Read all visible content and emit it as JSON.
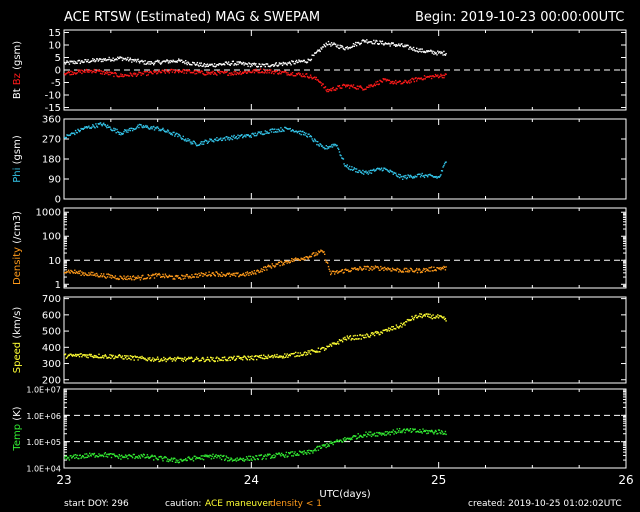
{
  "header": {
    "title": "ACE RTSW (Estimated) MAG & SWEPAM",
    "begin": "Begin: 2019-10-23 00:00:00UTC"
  },
  "footer": {
    "start_doy": "start DOY: 296",
    "caution_label": "caution:",
    "caution_maneuver": "ACE maneuver",
    "caution_density": "density < 1",
    "created": "created: 2019-10-25 01:02:02UTC"
  },
  "colors": {
    "background": "#000000",
    "frame": "#ffffff",
    "bt": "#ffffff",
    "bz": "#ff1a1a",
    "phi": "#33c4e8",
    "density": "#ff9a1a",
    "speed": "#ffff33",
    "temp": "#33ee33"
  },
  "chart_data": [
    {
      "type": "scatter",
      "panel": "mag",
      "ylabel": "Bt  Bz  (gsm)",
      "ylabel_parts": [
        {
          "text": "Bt",
          "color": "#ffffff"
        },
        {
          "text": "Bz",
          "color": "#ff1a1a"
        },
        {
          "text": "(gsm)",
          "color": "#ffffff"
        }
      ],
      "ylim": [
        -16,
        16
      ],
      "yticks": [
        -15,
        -10,
        -5,
        0,
        5,
        10,
        15
      ],
      "ytick_labels": [
        "-15",
        "-10",
        "-5",
        "0",
        "5",
        "10",
        "15"
      ],
      "dashed_lines": [
        0
      ],
      "series": [
        {
          "name": "Bt",
          "color": "#ffffff",
          "x": [
            23.0,
            23.15,
            23.3,
            23.45,
            23.6,
            23.75,
            23.9,
            24.05,
            24.2,
            24.3,
            24.36,
            24.4,
            24.5,
            24.6,
            24.7,
            24.8,
            24.9,
            25.0,
            25.04
          ],
          "y": [
            3,
            4,
            5,
            3,
            4,
            2,
            3,
            2,
            3,
            4,
            8,
            11,
            9,
            12,
            11,
            10,
            8,
            7,
            7
          ]
        },
        {
          "name": "Bz",
          "color": "#ff1a1a",
          "x": [
            23.0,
            23.15,
            23.3,
            23.45,
            23.6,
            23.75,
            23.9,
            24.05,
            24.2,
            24.3,
            24.36,
            24.4,
            24.5,
            24.6,
            24.7,
            24.8,
            24.9,
            25.0,
            25.04
          ],
          "y": [
            -1,
            0,
            -2,
            -1,
            0,
            -1,
            -1,
            0,
            -1,
            -2,
            -4,
            -8,
            -6,
            -7,
            -4,
            -5,
            -3,
            -2,
            -2
          ]
        }
      ]
    },
    {
      "type": "scatter",
      "panel": "phi",
      "ylabel": "Phi  (gsm)",
      "ylabel_parts": [
        {
          "text": "Phi",
          "color": "#33c4e8"
        },
        {
          "text": "(gsm)",
          "color": "#ffffff"
        }
      ],
      "ylim": [
        0,
        360
      ],
      "yticks": [
        0,
        90,
        180,
        270,
        360
      ],
      "ytick_labels": [
        "0",
        "90",
        "180",
        "270",
        "360"
      ],
      "series": [
        {
          "name": "Phi",
          "color": "#33c4e8",
          "x": [
            23.0,
            23.1,
            23.2,
            23.3,
            23.4,
            23.5,
            23.6,
            23.7,
            23.8,
            23.9,
            24.0,
            24.1,
            24.2,
            24.3,
            24.38,
            24.45,
            24.5,
            24.6,
            24.7,
            24.8,
            24.9,
            25.0,
            25.04
          ],
          "y": [
            280,
            320,
            340,
            300,
            330,
            320,
            290,
            250,
            270,
            280,
            290,
            310,
            320,
            290,
            230,
            250,
            150,
            120,
            140,
            100,
            110,
            100,
            180
          ]
        }
      ]
    },
    {
      "type": "scatter",
      "panel": "density",
      "ylabel": "Density  (/cm3)",
      "ylabel_parts": [
        {
          "text": "Density",
          "color": "#ff9a1a"
        },
        {
          "text": "(/cm3)",
          "color": "#ffffff"
        }
      ],
      "yscale": "log",
      "ylim": [
        0.7,
        1500
      ],
      "yticks": [
        1,
        10,
        100,
        1000
      ],
      "ytick_labels": [
        "1",
        "10",
        "100",
        "1000"
      ],
      "dashed_lines": [
        10
      ],
      "series": [
        {
          "name": "Density",
          "color": "#ff9a1a",
          "x": [
            23.0,
            23.1,
            23.2,
            23.3,
            23.4,
            23.5,
            23.6,
            23.7,
            23.8,
            23.9,
            24.0,
            24.1,
            24.2,
            24.3,
            24.38,
            24.42,
            24.5,
            24.6,
            24.7,
            24.8,
            24.9,
            25.0,
            25.04
          ],
          "y": [
            4,
            3,
            2.5,
            2,
            2,
            2.5,
            2,
            2.5,
            3,
            2.5,
            3,
            6,
            10,
            15,
            25,
            3,
            4,
            5,
            5,
            4,
            4,
            5,
            5
          ]
        }
      ]
    },
    {
      "type": "scatter",
      "panel": "speed",
      "ylabel": "Speed  (km/s)",
      "ylabel_parts": [
        {
          "text": "Speed",
          "color": "#ffff33"
        },
        {
          "text": "(km/s)",
          "color": "#ffffff"
        }
      ],
      "ylim": [
        180,
        710
      ],
      "yticks": [
        200,
        300,
        400,
        500,
        600,
        700
      ],
      "ytick_labels": [
        "200",
        "300",
        "400",
        "500",
        "600",
        "700"
      ],
      "series": [
        {
          "name": "Speed",
          "color": "#ffff33",
          "x": [
            23.0,
            23.1,
            23.2,
            23.3,
            23.4,
            23.5,
            23.6,
            23.7,
            23.8,
            23.9,
            24.0,
            24.1,
            24.2,
            24.3,
            24.4,
            24.5,
            24.6,
            24.7,
            24.8,
            24.85,
            24.9,
            25.0,
            25.04
          ],
          "y": [
            350,
            355,
            350,
            345,
            335,
            330,
            330,
            330,
            330,
            335,
            340,
            345,
            355,
            370,
            400,
            460,
            470,
            500,
            540,
            580,
            600,
            590,
            570
          ]
        }
      ]
    },
    {
      "type": "scatter",
      "panel": "temp",
      "ylabel": "Temp  (K)",
      "ylabel_parts": [
        {
          "text": "Temp",
          "color": "#33ee33"
        },
        {
          "text": "(K)",
          "color": "#ffffff"
        }
      ],
      "yscale": "log",
      "ylim": [
        10000,
        10000000
      ],
      "yticks": [
        10000,
        100000,
        1000000,
        10000000
      ],
      "ytick_labels": [
        "1.0E+04",
        "1.0E+05",
        "1.0E+06",
        "1.0E+07"
      ],
      "dashed_lines": [
        100000,
        1000000
      ],
      "series": [
        {
          "name": "Temp",
          "color": "#33ee33",
          "x": [
            23.0,
            23.1,
            23.2,
            23.3,
            23.4,
            23.5,
            23.6,
            23.7,
            23.8,
            23.9,
            24.0,
            24.1,
            24.2,
            24.3,
            24.4,
            24.5,
            24.6,
            24.7,
            24.8,
            24.9,
            25.0,
            25.04
          ],
          "y": [
            25000,
            30000,
            35000,
            28000,
            30000,
            25000,
            20000,
            25000,
            30000,
            22000,
            25000,
            30000,
            35000,
            40000,
            80000,
            130000,
            200000,
            220000,
            280000,
            260000,
            250000,
            240000
          ]
        }
      ]
    }
  ],
  "x_axis": {
    "label": "UTC(days)",
    "range": [
      23,
      26
    ],
    "ticks": [
      23,
      24,
      25,
      26
    ],
    "tick_labels": [
      "23",
      "24",
      "25",
      "26"
    ]
  }
}
